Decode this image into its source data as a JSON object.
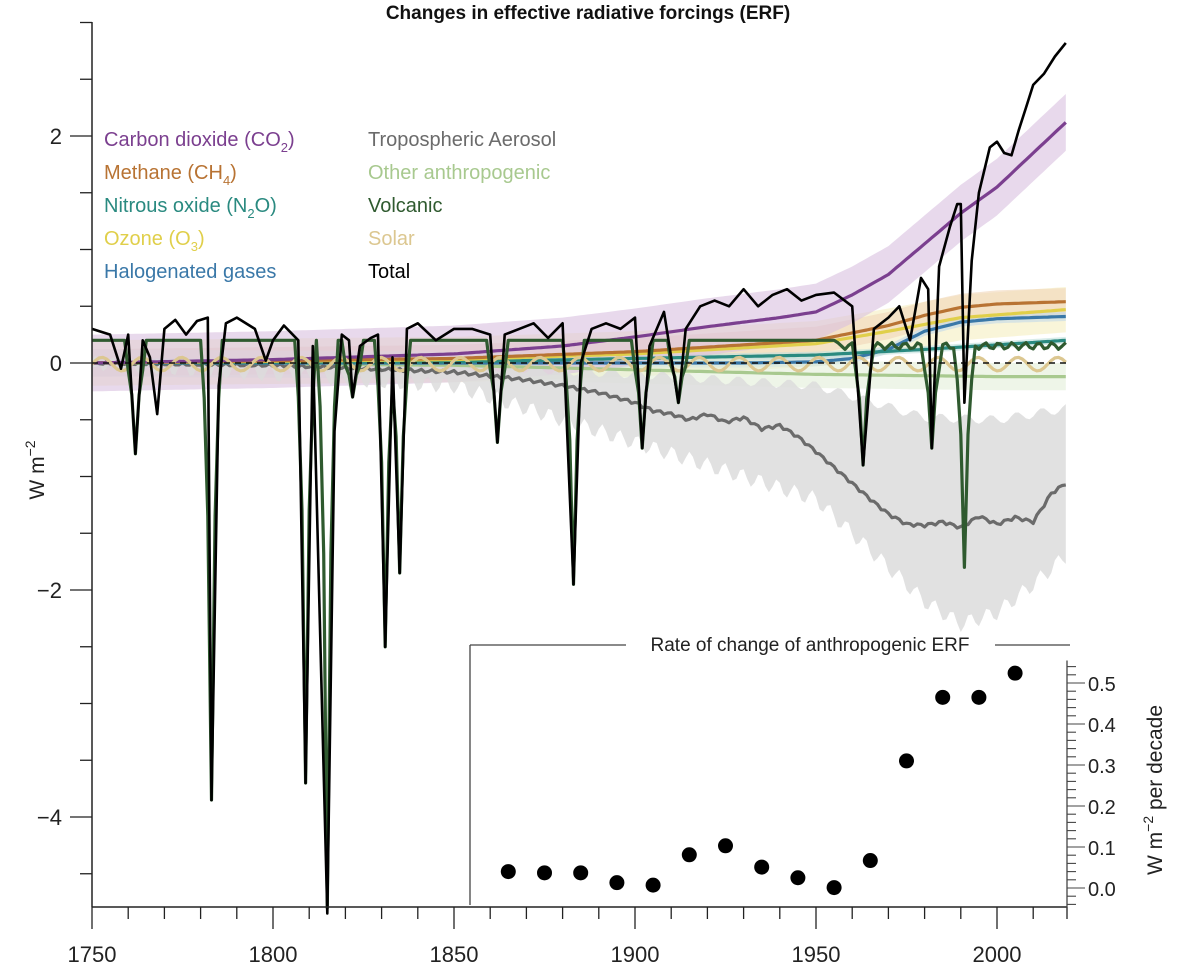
{
  "chart_data": [
    {
      "type": "line",
      "title": "Changes in effective radiative forcings (ERF)",
      "xlabel": "",
      "ylabel": "W m⁻²",
      "xlim": [
        1750,
        2019
      ],
      "ylim": [
        -4.8,
        3.0
      ],
      "x_ticks": [
        1750,
        1800,
        1850,
        1900,
        1950,
        2000
      ],
      "x_tick_labels": [
        "1750",
        "1800",
        "1850",
        "1900",
        "1950",
        "2000"
      ],
      "y_ticks": [
        2,
        0,
        -2,
        -4
      ],
      "y_tick_labels": [
        "2",
        "0",
        "−2",
        "−4"
      ],
      "y_minor_step": 0.5,
      "x_minor_step": 10,
      "zero_line": "dashed",
      "legend_columns": [
        [
          "co2",
          "ch4",
          "n2o",
          "o3",
          "halo"
        ],
        [
          "aerosol",
          "other",
          "volcanic",
          "solar",
          "total"
        ]
      ],
      "legend_placement": "top-left",
      "series": [
        {
          "id": "co2",
          "name": "Carbon dioxide (CO",
          "sub": "2",
          "suffix": ")",
          "color": "#7b3f8f",
          "band_color": "#d9bfe0",
          "points": [
            [
              1750,
              0
            ],
            [
              1800,
              0.03
            ],
            [
              1850,
              0.08
            ],
            [
              1880,
              0.15
            ],
            [
              1900,
              0.23
            ],
            [
              1920,
              0.32
            ],
            [
              1940,
              0.4
            ],
            [
              1950,
              0.45
            ],
            [
              1960,
              0.6
            ],
            [
              1970,
              0.78
            ],
            [
              1980,
              1.05
            ],
            [
              1990,
              1.32
            ],
            [
              2000,
              1.55
            ],
            [
              2010,
              1.85
            ],
            [
              2019,
              2.12
            ]
          ],
          "band": 0.25
        },
        {
          "id": "ch4",
          "name": "Methane (CH",
          "sub": "4",
          "suffix": ")",
          "color": "#b87333",
          "band_color": "#f0d5b8",
          "points": [
            [
              1750,
              0
            ],
            [
              1850,
              0.04
            ],
            [
              1900,
              0.1
            ],
            [
              1950,
              0.2
            ],
            [
              1970,
              0.33
            ],
            [
              1980,
              0.42
            ],
            [
              1990,
              0.49
            ],
            [
              2000,
              0.52
            ],
            [
              2019,
              0.54
            ]
          ],
          "band": 0.12
        },
        {
          "id": "n2o",
          "name": "Nitrous oxide (N",
          "sub": "2",
          "suffix": "O)",
          "color": "#2a8a80",
          "band_color": "#bfe0dc",
          "points": [
            [
              1750,
              0
            ],
            [
              1850,
              0.01
            ],
            [
              1900,
              0.04
            ],
            [
              1950,
              0.07
            ],
            [
              1980,
              0.12
            ],
            [
              2000,
              0.16
            ],
            [
              2019,
              0.2
            ]
          ],
          "band": 0.03
        },
        {
          "id": "o3",
          "name": "Ozone (O",
          "sub": "3",
          "suffix": ")",
          "color": "#e0cf4a",
          "band_color": "#f5efbf",
          "points": [
            [
              1750,
              0
            ],
            [
              1850,
              0.03
            ],
            [
              1900,
              0.08
            ],
            [
              1950,
              0.17
            ],
            [
              1970,
              0.28
            ],
            [
              1990,
              0.4
            ],
            [
              2019,
              0.47
            ]
          ],
          "band": 0.2
        },
        {
          "id": "halo",
          "name": "Halogenated gases",
          "sub": "",
          "suffix": "",
          "color": "#3a78a8",
          "band_color": "#c2d8ea",
          "points": [
            [
              1750,
              0
            ],
            [
              1930,
              0
            ],
            [
              1950,
              0.01
            ],
            [
              1960,
              0.04
            ],
            [
              1970,
              0.12
            ],
            [
              1980,
              0.28
            ],
            [
              1990,
              0.36
            ],
            [
              2000,
              0.39
            ],
            [
              2019,
              0.41
            ]
          ],
          "band": 0.04
        },
        {
          "id": "aerosol",
          "name": "Tropospheric Aerosol",
          "sub": "",
          "suffix": "",
          "color": "#6b6b6b",
          "band_color": "#dcdcdc",
          "points": [
            [
              1750,
              0
            ],
            [
              1800,
              -0.02
            ],
            [
              1850,
              -0.08
            ],
            [
              1870,
              -0.15
            ],
            [
              1880,
              -0.2
            ],
            [
              1890,
              -0.26
            ],
            [
              1900,
              -0.35
            ],
            [
              1905,
              -0.42
            ],
            [
              1910,
              -0.45
            ],
            [
              1915,
              -0.5
            ],
            [
              1920,
              -0.45
            ],
            [
              1925,
              -0.52
            ],
            [
              1930,
              -0.48
            ],
            [
              1935,
              -0.58
            ],
            [
              1940,
              -0.55
            ],
            [
              1945,
              -0.65
            ],
            [
              1950,
              -0.78
            ],
            [
              1955,
              -0.92
            ],
            [
              1960,
              -1.06
            ],
            [
              1965,
              -1.2
            ],
            [
              1970,
              -1.33
            ],
            [
              1975,
              -1.42
            ],
            [
              1980,
              -1.43
            ],
            [
              1985,
              -1.4
            ],
            [
              1990,
              -1.45
            ],
            [
              1995,
              -1.35
            ],
            [
              2000,
              -1.42
            ],
            [
              2005,
              -1.36
            ],
            [
              2010,
              -1.4
            ],
            [
              2015,
              -1.15
            ],
            [
              2019,
              -1.06
            ]
          ],
          "band_upper": [
            [
              1750,
              0
            ],
            [
              1850,
              -0.02
            ],
            [
              1900,
              -0.1
            ],
            [
              1950,
              -0.2
            ],
            [
              1980,
              -0.48
            ],
            [
              2000,
              -0.5
            ],
            [
              2010,
              -0.45
            ],
            [
              2019,
              -0.4
            ]
          ],
          "band_lower": [
            [
              1750,
              0
            ],
            [
              1850,
              -0.2
            ],
            [
              1900,
              -0.7
            ],
            [
              1950,
              -1.2
            ],
            [
              1970,
              -1.8
            ],
            [
              1980,
              -2.1
            ],
            [
              1990,
              -2.3
            ],
            [
              2000,
              -2.2
            ],
            [
              2010,
              -1.95
            ],
            [
              2019,
              -1.7
            ]
          ]
        },
        {
          "id": "other",
          "name": "Other anthropogenic",
          "sub": "",
          "suffix": "",
          "color": "#a8c98f",
          "band_color": "#e3efd8",
          "points": [
            [
              1750,
              0
            ],
            [
              1850,
              -0.02
            ],
            [
              1900,
              -0.06
            ],
            [
              1950,
              -0.1
            ],
            [
              2000,
              -0.12
            ],
            [
              2019,
              -0.12
            ]
          ],
          "band": 0.12
        },
        {
          "id": "volcanic",
          "name": "Volcanic",
          "sub": "",
          "suffix": "",
          "color": "#2f5a2f",
          "band_color": "#cfe3cf",
          "baseline": 0.2,
          "eruptions": [
            [
              1762,
              -0.8
            ],
            [
              1783,
              -3.85
            ],
            [
              1809,
              -3.7
            ],
            [
              1815,
              -4.8
            ],
            [
              1822,
              -0.3
            ],
            [
              1831,
              -2.5
            ],
            [
              1835,
              -1.85
            ],
            [
              1862,
              -0.7
            ],
            [
              1883,
              -1.95
            ],
            [
              1902,
              -0.75
            ],
            [
              1912,
              -0.35
            ],
            [
              1963,
              -0.9
            ],
            [
              1982,
              -0.75
            ],
            [
              1991,
              -1.8
            ]
          ]
        },
        {
          "id": "solar",
          "name": "Solar",
          "sub": "",
          "suffix": "",
          "color": "#dcc790",
          "band_color": "#f3ead3",
          "amplitude": 0.06,
          "period_years": 11
        },
        {
          "id": "total",
          "name": "Total",
          "sub": "",
          "suffix": "",
          "color": "#000000",
          "points": [
            [
              1750,
              0.3
            ],
            [
              1755,
              0.25
            ],
            [
              1758,
              -0.05
            ],
            [
              1760,
              0.25
            ],
            [
              1762,
              -0.8
            ],
            [
              1764,
              0.2
            ],
            [
              1766,
              0.05
            ],
            [
              1768,
              -0.45
            ],
            [
              1770,
              0.3
            ],
            [
              1773,
              0.38
            ],
            [
              1776,
              0.25
            ],
            [
              1779,
              0.37
            ],
            [
              1782,
              0.4
            ],
            [
              1783,
              -3.85
            ],
            [
              1785,
              -0.2
            ],
            [
              1787,
              0.35
            ],
            [
              1790,
              0.4
            ],
            [
              1795,
              0.3
            ],
            [
              1798,
              0.02
            ],
            [
              1800,
              0.2
            ],
            [
              1803,
              0.33
            ],
            [
              1807,
              0.2
            ],
            [
              1809,
              -3.7
            ],
            [
              1811,
              0.15
            ],
            [
              1815,
              -4.85
            ],
            [
              1817,
              -0.6
            ],
            [
              1819,
              0.25
            ],
            [
              1821,
              0.2
            ],
            [
              1822,
              -0.3
            ],
            [
              1824,
              0.15
            ],
            [
              1827,
              0.22
            ],
            [
              1829,
              0.25
            ],
            [
              1831,
              -2.5
            ],
            [
              1833,
              0.05
            ],
            [
              1835,
              -1.85
            ],
            [
              1837,
              0.3
            ],
            [
              1840,
              0.35
            ],
            [
              1845,
              0.2
            ],
            [
              1850,
              0.3
            ],
            [
              1855,
              0.3
            ],
            [
              1860,
              0.25
            ],
            [
              1862,
              -0.7
            ],
            [
              1864,
              0.25
            ],
            [
              1868,
              0.3
            ],
            [
              1872,
              0.35
            ],
            [
              1876,
              0.22
            ],
            [
              1880,
              0.35
            ],
            [
              1883,
              -1.95
            ],
            [
              1885,
              0.0
            ],
            [
              1888,
              0.3
            ],
            [
              1892,
              0.35
            ],
            [
              1896,
              0.3
            ],
            [
              1900,
              0.4
            ],
            [
              1902,
              -0.75
            ],
            [
              1904,
              0.15
            ],
            [
              1908,
              0.45
            ],
            [
              1912,
              -0.35
            ],
            [
              1914,
              0.3
            ],
            [
              1918,
              0.5
            ],
            [
              1922,
              0.55
            ],
            [
              1926,
              0.5
            ],
            [
              1930,
              0.65
            ],
            [
              1934,
              0.5
            ],
            [
              1938,
              0.6
            ],
            [
              1942,
              0.65
            ],
            [
              1946,
              0.55
            ],
            [
              1950,
              0.6
            ],
            [
              1955,
              0.62
            ],
            [
              1960,
              0.5
            ],
            [
              1963,
              -0.9
            ],
            [
              1966,
              0.3
            ],
            [
              1970,
              0.4
            ],
            [
              1973,
              0.5
            ],
            [
              1976,
              0.2
            ],
            [
              1979,
              0.75
            ],
            [
              1981,
              0.65
            ],
            [
              1982,
              -0.75
            ],
            [
              1984,
              0.85
            ],
            [
              1987,
              1.2
            ],
            [
              1989,
              1.4
            ],
            [
              1990,
              1.4
            ],
            [
              1991,
              -0.35
            ],
            [
              1993,
              0.9
            ],
            [
              1995,
              1.5
            ],
            [
              1998,
              1.9
            ],
            [
              2000,
              1.95
            ],
            [
              2002,
              1.85
            ],
            [
              2004,
              1.83
            ],
            [
              2006,
              2.05
            ],
            [
              2008,
              2.25
            ],
            [
              2010,
              2.45
            ],
            [
              2013,
              2.55
            ],
            [
              2016,
              2.7
            ],
            [
              2019,
              2.82
            ]
          ]
        }
      ]
    },
    {
      "type": "scatter",
      "title": "Rate of change of anthropogenic ERF",
      "xlabel": "",
      "ylabel": "W m⁻² per decade",
      "ylim": [
        -0.05,
        0.55
      ],
      "y_ticks": [
        0.0,
        0.1,
        0.2,
        0.3,
        0.4,
        0.5
      ],
      "y_tick_labels": [
        "0.0",
        "0.1",
        "0.2",
        "0.3",
        "0.4",
        "0.5"
      ],
      "y_minor_step": 0.02,
      "axis_side": "right",
      "x": [
        1865,
        1875,
        1885,
        1895,
        1905,
        1915,
        1925,
        1935,
        1945,
        1955,
        1965,
        1975,
        1985,
        1995,
        2005
      ],
      "values": [
        0.04,
        0.037,
        0.037,
        0.013,
        0.007,
        0.081,
        0.103,
        0.051,
        0.025,
        0.001,
        0.067,
        0.31,
        0.465,
        0.465,
        0.524
      ],
      "marker_color": "#000000"
    }
  ]
}
